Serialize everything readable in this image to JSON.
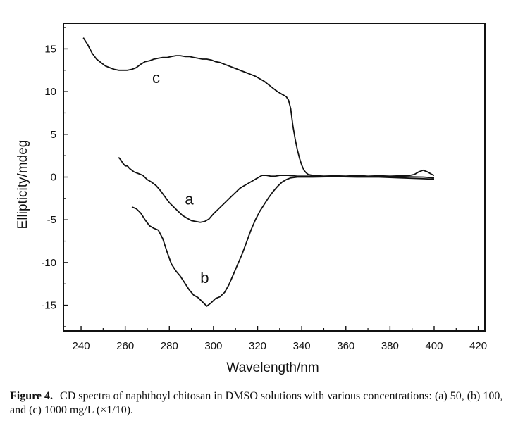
{
  "chart_data": {
    "type": "line",
    "xlabel": "Wavelength/nm",
    "ylabel": "Ellipticity/mdeg",
    "xlim": [
      232,
      423
    ],
    "ylim": [
      -18,
      18
    ],
    "xticks": [
      240,
      260,
      280,
      300,
      320,
      340,
      360,
      380,
      400,
      420
    ],
    "yticks": [
      15,
      10,
      5,
      0,
      -5,
      -10,
      -15
    ],
    "grid": false,
    "legend": "none",
    "series": [
      {
        "name": "a",
        "label_at": [
          289,
          -3.2
        ],
        "points": [
          [
            257,
            2.3
          ],
          [
            258,
            2.0
          ],
          [
            259,
            1.6
          ],
          [
            260,
            1.3
          ],
          [
            261,
            1.3
          ],
          [
            262,
            1.0
          ],
          [
            264,
            0.6
          ],
          [
            266,
            0.4
          ],
          [
            268,
            0.2
          ],
          [
            270,
            -0.3
          ],
          [
            272,
            -0.6
          ],
          [
            274,
            -1.0
          ],
          [
            276,
            -1.6
          ],
          [
            278,
            -2.3
          ],
          [
            280,
            -3.0
          ],
          [
            282,
            -3.5
          ],
          [
            284,
            -4.0
          ],
          [
            286,
            -4.5
          ],
          [
            288,
            -4.8
          ],
          [
            290,
            -5.1
          ],
          [
            292,
            -5.2
          ],
          [
            294,
            -5.3
          ],
          [
            296,
            -5.2
          ],
          [
            298,
            -4.9
          ],
          [
            300,
            -4.3
          ],
          [
            302,
            -3.8
          ],
          [
            304,
            -3.3
          ],
          [
            306,
            -2.8
          ],
          [
            308,
            -2.3
          ],
          [
            310,
            -1.8
          ],
          [
            312,
            -1.3
          ],
          [
            314,
            -1.0
          ],
          [
            316,
            -0.7
          ],
          [
            318,
            -0.4
          ],
          [
            320,
            -0.1
          ],
          [
            322,
            0.2
          ],
          [
            324,
            0.2
          ],
          [
            326,
            0.1
          ],
          [
            328,
            0.1
          ],
          [
            330,
            0.2
          ],
          [
            334,
            0.2
          ],
          [
            338,
            0.1
          ],
          [
            345,
            0.1
          ],
          [
            355,
            0.1
          ],
          [
            365,
            0.1
          ],
          [
            375,
            0.05
          ],
          [
            385,
            0.05
          ],
          [
            395,
            0.0
          ],
          [
            400,
            -0.1
          ]
        ]
      },
      {
        "name": "b",
        "label_at": [
          296,
          -12.4
        ],
        "points": [
          [
            263,
            -3.5
          ],
          [
            265,
            -3.7
          ],
          [
            267,
            -4.2
          ],
          [
            269,
            -5.0
          ],
          [
            271,
            -5.7
          ],
          [
            273,
            -6.0
          ],
          [
            275,
            -6.2
          ],
          [
            277,
            -7.2
          ],
          [
            279,
            -8.8
          ],
          [
            281,
            -10.2
          ],
          [
            283,
            -11.0
          ],
          [
            285,
            -11.6
          ],
          [
            287,
            -12.4
          ],
          [
            289,
            -13.2
          ],
          [
            291,
            -13.8
          ],
          [
            293,
            -14.1
          ],
          [
            295,
            -14.6
          ],
          [
            297,
            -15.1
          ],
          [
            299,
            -14.7
          ],
          [
            301,
            -14.2
          ],
          [
            303,
            -14.0
          ],
          [
            305,
            -13.5
          ],
          [
            307,
            -12.6
          ],
          [
            309,
            -11.4
          ],
          [
            311,
            -10.2
          ],
          [
            313,
            -9.0
          ],
          [
            315,
            -7.6
          ],
          [
            317,
            -6.2
          ],
          [
            319,
            -5.0
          ],
          [
            321,
            -4.0
          ],
          [
            323,
            -3.2
          ],
          [
            325,
            -2.4
          ],
          [
            327,
            -1.7
          ],
          [
            329,
            -1.1
          ],
          [
            331,
            -0.6
          ],
          [
            333,
            -0.3
          ],
          [
            335,
            -0.1
          ],
          [
            338,
            0.0
          ],
          [
            345,
            0.0
          ],
          [
            355,
            0.05
          ],
          [
            365,
            0.0
          ],
          [
            375,
            0.0
          ],
          [
            385,
            -0.1
          ],
          [
            395,
            -0.2
          ],
          [
            400,
            -0.25
          ]
        ]
      },
      {
        "name": "c",
        "label_at": [
          274,
          11.0
        ],
        "points": [
          [
            241,
            16.3
          ],
          [
            243,
            15.5
          ],
          [
            245,
            14.5
          ],
          [
            247,
            13.8
          ],
          [
            249,
            13.4
          ],
          [
            251,
            13.0
          ],
          [
            253,
            12.8
          ],
          [
            255,
            12.6
          ],
          [
            257,
            12.5
          ],
          [
            259,
            12.5
          ],
          [
            261,
            12.5
          ],
          [
            263,
            12.6
          ],
          [
            265,
            12.8
          ],
          [
            267,
            13.2
          ],
          [
            269,
            13.5
          ],
          [
            271,
            13.6
          ],
          [
            273,
            13.8
          ],
          [
            275,
            13.9
          ],
          [
            277,
            14.0
          ],
          [
            279,
            14.0
          ],
          [
            281,
            14.1
          ],
          [
            283,
            14.2
          ],
          [
            285,
            14.2
          ],
          [
            287,
            14.1
          ],
          [
            289,
            14.1
          ],
          [
            291,
            14.0
          ],
          [
            293,
            13.9
          ],
          [
            295,
            13.8
          ],
          [
            297,
            13.8
          ],
          [
            299,
            13.7
          ],
          [
            301,
            13.5
          ],
          [
            303,
            13.4
          ],
          [
            305,
            13.2
          ],
          [
            307,
            13.0
          ],
          [
            309,
            12.8
          ],
          [
            311,
            12.6
          ],
          [
            313,
            12.4
          ],
          [
            315,
            12.2
          ],
          [
            317,
            12.0
          ],
          [
            319,
            11.8
          ],
          [
            321,
            11.5
          ],
          [
            323,
            11.2
          ],
          [
            325,
            10.8
          ],
          [
            327,
            10.4
          ],
          [
            329,
            10.0
          ],
          [
            331,
            9.7
          ],
          [
            333,
            9.4
          ],
          [
            334,
            9.0
          ],
          [
            335,
            8.0
          ],
          [
            336,
            6.0
          ],
          [
            337,
            4.5
          ],
          [
            338,
            3.2
          ],
          [
            339,
            2.2
          ],
          [
            340,
            1.4
          ],
          [
            341,
            0.8
          ],
          [
            342,
            0.5
          ],
          [
            343,
            0.3
          ],
          [
            345,
            0.2
          ],
          [
            350,
            0.1
          ],
          [
            355,
            0.15
          ],
          [
            360,
            0.1
          ],
          [
            365,
            0.2
          ],
          [
            370,
            0.1
          ],
          [
            375,
            0.15
          ],
          [
            380,
            0.1
          ],
          [
            385,
            0.15
          ],
          [
            389,
            0.2
          ],
          [
            391,
            0.3
          ],
          [
            393,
            0.6
          ],
          [
            395,
            0.8
          ],
          [
            397,
            0.6
          ],
          [
            399,
            0.3
          ],
          [
            400,
            0.2
          ]
        ]
      }
    ]
  },
  "caption": {
    "label": "Figure 4.",
    "text": "CD spectra of naphthoyl chitosan in DMSO solutions with various concentrations: (a) 50, (b) 100, and (c) 1000 mg/L (×1/10)."
  }
}
